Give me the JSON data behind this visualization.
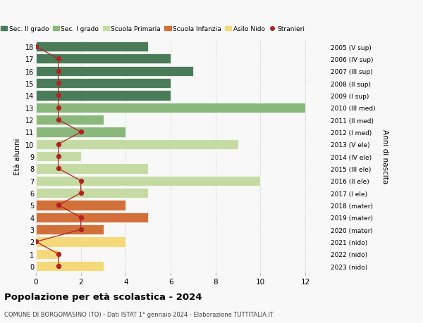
{
  "ages": [
    18,
    17,
    16,
    15,
    14,
    13,
    12,
    11,
    10,
    9,
    8,
    7,
    6,
    5,
    4,
    3,
    2,
    1,
    0
  ],
  "right_labels": [
    "2005 (V sup)",
    "2006 (IV sup)",
    "2007 (III sup)",
    "2008 (II sup)",
    "2009 (I sup)",
    "2010 (III med)",
    "2011 (II med)",
    "2012 (I med)",
    "2013 (V ele)",
    "2014 (IV ele)",
    "2015 (III ele)",
    "2016 (II ele)",
    "2017 (I ele)",
    "2018 (mater)",
    "2019 (mater)",
    "2020 (mater)",
    "2021 (nido)",
    "2022 (nido)",
    "2023 (nido)"
  ],
  "bar_values": [
    5,
    6,
    7,
    6,
    6,
    12,
    3,
    4,
    9,
    2,
    5,
    10,
    5,
    4,
    5,
    3,
    4,
    1,
    3
  ],
  "bar_colors": [
    "#4a7c59",
    "#4a7c59",
    "#4a7c59",
    "#4a7c59",
    "#4a7c59",
    "#8ab87a",
    "#8ab87a",
    "#8ab87a",
    "#c5dba4",
    "#c5dba4",
    "#c5dba4",
    "#c5dba4",
    "#c5dba4",
    "#d2703a",
    "#d2703a",
    "#d2703a",
    "#f5d87a",
    "#f5d87a",
    "#f5d87a"
  ],
  "stranieri_x": [
    0,
    1,
    1,
    1,
    1,
    1,
    1,
    2,
    1,
    1,
    1,
    2,
    2,
    1,
    2,
    2,
    0,
    1,
    1
  ],
  "legend_labels": [
    "Sec. II grado",
    "Sec. I grado",
    "Scuola Primaria",
    "Scuola Infanzia",
    "Asilo Nido",
    "Stranieri"
  ],
  "legend_colors": [
    "#4a7c59",
    "#8ab87a",
    "#c5dba4",
    "#d2703a",
    "#f5d87a",
    "#b22222"
  ],
  "title": "Popolazione per età scolastica - 2024",
  "subtitle": "COMUNE DI BORGOMASINO (TO) - Dati ISTAT 1° gennaio 2024 - Elaborazione TUTTITALIA.IT",
  "ylabel_left": "Età alunni",
  "ylabel_right": "Anni di nascita",
  "xlim": [
    0,
    13
  ],
  "ylim_min": -0.55,
  "ylim_max": 18.55,
  "background_color": "#f8f8f8",
  "bar_edgecolor": "white",
  "grid_color": "#cccccc",
  "stranieri_color": "#b22222",
  "bar_height": 0.82
}
